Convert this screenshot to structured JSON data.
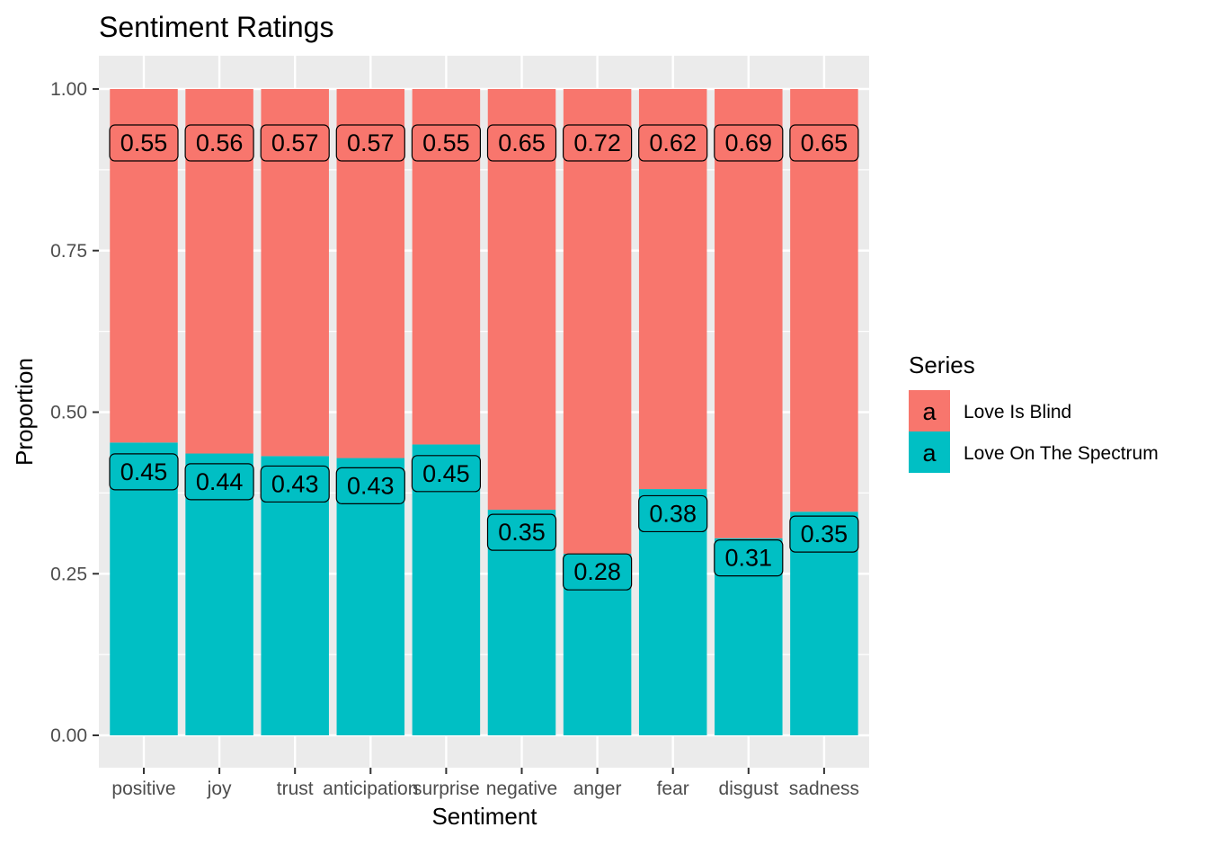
{
  "chart_data": {
    "type": "bar",
    "stacked": true,
    "title": "Sentiment Ratings",
    "xlabel": "Sentiment",
    "ylabel": "Proportion",
    "ylim": [
      0,
      1
    ],
    "yticks": [
      "0.00",
      "0.25",
      "0.50",
      "0.75",
      "1.00"
    ],
    "categories": [
      "positive",
      "joy",
      "trust",
      "anticipation",
      "surprise",
      "negative",
      "anger",
      "fear",
      "disgust",
      "sadness"
    ],
    "series": [
      {
        "name": "Love Is Blind",
        "color": "#F8766D",
        "values": [
          0.55,
          0.56,
          0.57,
          0.57,
          0.55,
          0.65,
          0.72,
          0.62,
          0.69,
          0.65
        ],
        "labels": [
          "0.55",
          "0.56",
          "0.57",
          "0.57",
          "0.55",
          "0.65",
          "0.72",
          "0.62",
          "0.69",
          "0.65"
        ]
      },
      {
        "name": "Love On The Spectrum",
        "color": "#00BFC4",
        "values": [
          0.453,
          0.436,
          0.432,
          0.429,
          0.45,
          0.349,
          0.281,
          0.381,
          0.305,
          0.346
        ],
        "labels": [
          "0.45",
          "0.44",
          "0.43",
          "0.43",
          "0.45",
          "0.35",
          "0.28",
          "0.38",
          "0.31",
          "0.35"
        ]
      }
    ],
    "legend": {
      "title": "Series",
      "position": "right",
      "key_glyph": "a"
    },
    "grid": true
  }
}
